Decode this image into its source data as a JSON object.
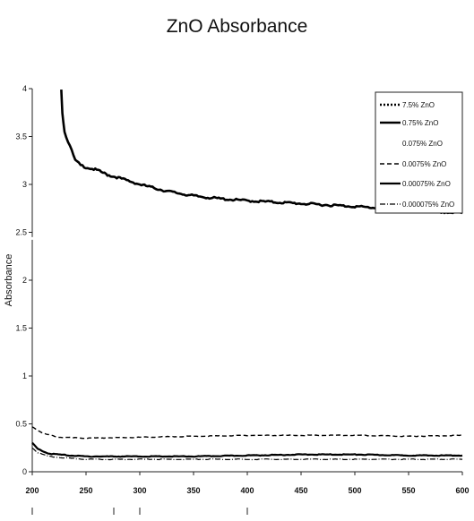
{
  "chart_data": {
    "type": "line",
    "title": "ZnO Absorbance",
    "xlabel": "",
    "ylabel": "Absorbance",
    "xlim": [
      200,
      600
    ],
    "ylim": [
      0,
      4
    ],
    "x_ticks": [
      "200",
      "250",
      "300",
      "350",
      "400",
      "450",
      "500",
      "550",
      "600"
    ],
    "y_ticks": [
      "0",
      "0.5",
      "1",
      "1.5",
      "2",
      "2.5",
      "3",
      "3.5",
      "4"
    ],
    "legend_position": "top-right",
    "series": [
      {
        "name": "7.5% ZnO",
        "style": "dotted",
        "x": [],
        "y": []
      },
      {
        "name": "0.75% ZnO",
        "style": "solid-thick",
        "x": [
          227,
          228,
          230,
          235,
          240,
          245,
          250,
          260,
          270,
          280,
          300,
          325,
          350,
          375,
          400,
          450,
          500,
          550,
          600
        ],
        "y": [
          4.0,
          3.75,
          3.55,
          3.4,
          3.25,
          3.2,
          3.18,
          3.15,
          3.1,
          3.07,
          3.0,
          2.93,
          2.88,
          2.85,
          2.83,
          2.8,
          2.77,
          2.73,
          2.7
        ]
      },
      {
        "name": "0.075% ZnO",
        "style": "none",
        "x": [],
        "y": []
      },
      {
        "name": "0.0075% ZnO",
        "style": "dashed",
        "x": [
          200,
          210,
          225,
          250,
          300,
          350,
          400,
          450,
          500,
          550,
          600
        ],
        "y": [
          0.47,
          0.4,
          0.36,
          0.35,
          0.36,
          0.37,
          0.38,
          0.38,
          0.38,
          0.37,
          0.38
        ]
      },
      {
        "name": "0.00075% ZnO",
        "style": "solid",
        "x": [
          200,
          205,
          215,
          235,
          250,
          300,
          350,
          400,
          450,
          500,
          550,
          600
        ],
        "y": [
          0.3,
          0.24,
          0.19,
          0.17,
          0.16,
          0.16,
          0.16,
          0.17,
          0.18,
          0.18,
          0.17,
          0.17
        ]
      },
      {
        "name": "0.000075% ZnO",
        "style": "dash-dot",
        "x": [
          200,
          205,
          215,
          235,
          250,
          300,
          350,
          400,
          450,
          500,
          550,
          600
        ],
        "y": [
          0.25,
          0.2,
          0.16,
          0.14,
          0.13,
          0.13,
          0.13,
          0.13,
          0.13,
          0.13,
          0.13,
          0.13
        ]
      }
    ]
  }
}
